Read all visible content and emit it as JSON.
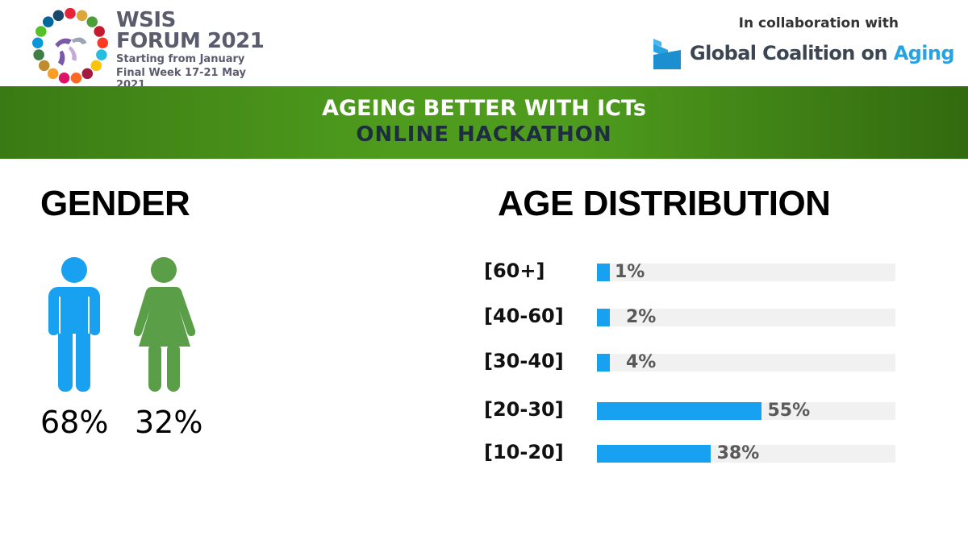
{
  "header": {
    "wsis_title_line1": "WSIS",
    "wsis_title_line2": "FORUM 2021",
    "wsis_sub_line1": "Starting from January",
    "wsis_sub_line2": "Final Week 17-21 May 2021",
    "collab_text": "In collaboration with",
    "gca_text": "Global Coalition on",
    "gca_highlight": "Aging"
  },
  "banner": {
    "title": "AGEING BETTER WITH ICTs",
    "subtitle": "ONLINE HACKATHON"
  },
  "gender": {
    "heading": "GENDER",
    "male_pct": "68%",
    "female_pct": "32%",
    "male_color": "#17a1f0",
    "female_color": "#5a9e48"
  },
  "age": {
    "heading": "AGE DISTRIBUTION"
  },
  "chart_data": {
    "type": "bar",
    "orientation": "horizontal",
    "title": "AGE DISTRIBUTION",
    "categories": [
      "[60+]",
      "[40-60]",
      "[30-40]",
      "[20-30]",
      "[10-20]"
    ],
    "values": [
      1,
      2,
      4,
      55,
      38
    ],
    "value_labels": [
      "1%",
      "2%",
      "4%",
      "55%",
      "38%"
    ],
    "xlim": [
      0,
      100
    ],
    "unit": "%",
    "bar_color": "#17a1f0",
    "track_color": "#f1f1f1"
  }
}
